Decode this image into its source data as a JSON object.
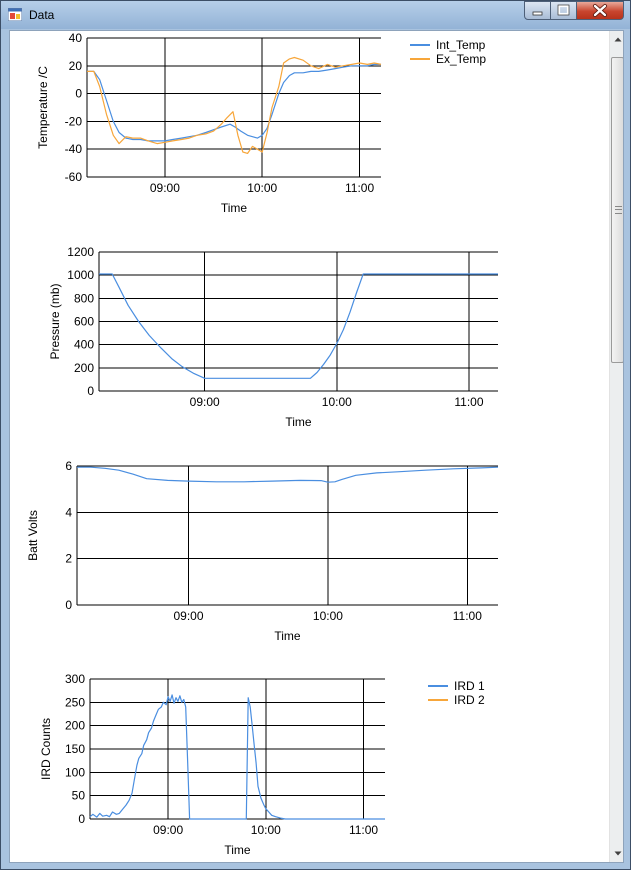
{
  "window": {
    "title": "Data"
  },
  "colors": {
    "series1": "#4a8ee0",
    "series2": "#f7a63a",
    "grid": "#000000"
  },
  "chart_data": [
    {
      "type": "line",
      "title": "",
      "xlabel": "Time",
      "ylabel": "Temperature /C",
      "xlim": [
        8.2,
        11.22
      ],
      "ylim": [
        -60,
        40
      ],
      "xticks": [
        9,
        10,
        11
      ],
      "xtick_labels": [
        "09:00",
        "10:00",
        "11:00"
      ],
      "yticks": [
        -60,
        -40,
        -20,
        0,
        20,
        40
      ],
      "ytick_labels": [
        "-60",
        "-40",
        "-20",
        "0",
        "20",
        "40"
      ],
      "legend": "outside-right",
      "series": [
        {
          "name": "Int_Temp",
          "x": [
            8.2,
            8.27,
            8.33,
            8.4,
            8.47,
            8.53,
            8.6,
            8.67,
            8.75,
            8.83,
            8.92,
            9.0,
            9.08,
            9.17,
            9.25,
            9.33,
            9.42,
            9.5,
            9.58,
            9.67,
            9.72,
            9.78,
            9.85,
            9.9,
            9.95,
            10.0,
            10.05,
            10.1,
            10.17,
            10.22,
            10.28,
            10.33,
            10.42,
            10.5,
            10.58,
            10.67,
            10.75,
            10.83,
            10.92,
            11.0,
            11.08,
            11.15,
            11.22
          ],
          "values": [
            16,
            16,
            10,
            -5,
            -20,
            -28,
            -32,
            -33,
            -33,
            -34,
            -34,
            -34,
            -33,
            -32,
            -31,
            -30,
            -28,
            -26,
            -24,
            -22,
            -24,
            -27,
            -30,
            -31,
            -32,
            -30,
            -25,
            -15,
            0,
            8,
            13,
            15,
            15,
            16,
            16,
            17,
            18,
            19,
            20,
            20,
            20,
            21,
            21
          ]
        },
        {
          "name": "Ex_Temp",
          "x": [
            8.2,
            8.27,
            8.33,
            8.4,
            8.47,
            8.53,
            8.6,
            8.67,
            8.75,
            8.83,
            8.92,
            9.0,
            9.08,
            9.17,
            9.25,
            9.33,
            9.42,
            9.5,
            9.58,
            9.63,
            9.7,
            9.72,
            9.75,
            9.8,
            9.85,
            9.9,
            9.95,
            10.0,
            10.05,
            10.1,
            10.17,
            10.22,
            10.28,
            10.33,
            10.42,
            10.5,
            10.58,
            10.67,
            10.75,
            10.83,
            10.92,
            11.0,
            11.08,
            11.15,
            11.22
          ],
          "values": [
            16,
            16,
            5,
            -15,
            -30,
            -36,
            -31,
            -32,
            -32,
            -34,
            -36,
            -35,
            -34,
            -33,
            -32,
            -30,
            -29,
            -27,
            -22,
            -18,
            -13,
            -20,
            -30,
            -42,
            -43,
            -38,
            -40,
            -42,
            -28,
            -10,
            5,
            22,
            25,
            26,
            24,
            20,
            18,
            21,
            19,
            20,
            21,
            22,
            21,
            22,
            21
          ]
        }
      ]
    },
    {
      "type": "line",
      "title": "",
      "xlabel": "Time",
      "ylabel": "Pressure (mb)",
      "xlim": [
        8.2,
        11.22
      ],
      "ylim": [
        0,
        1200
      ],
      "xticks": [
        9,
        10,
        11
      ],
      "xtick_labels": [
        "09:00",
        "10:00",
        "11:00"
      ],
      "yticks": [
        0,
        200,
        400,
        600,
        800,
        1000,
        1200
      ],
      "ytick_labels": [
        "0",
        "200",
        "400",
        "600",
        "800",
        "1000",
        "1200"
      ],
      "series": [
        {
          "name": "Pressure",
          "x": [
            8.2,
            8.3,
            8.35,
            8.42,
            8.5,
            8.58,
            8.67,
            8.75,
            8.83,
            8.92,
            9.0,
            9.17,
            9.33,
            9.5,
            9.67,
            9.8,
            9.85,
            9.9,
            9.95,
            10.0,
            10.05,
            10.1,
            10.15,
            10.2,
            10.3,
            10.5,
            10.75,
            11.0,
            11.22
          ],
          "values": [
            1010,
            1010,
            900,
            740,
            600,
            480,
            370,
            280,
            210,
            150,
            110,
            110,
            110,
            110,
            110,
            110,
            160,
            230,
            310,
            410,
            530,
            680,
            850,
            1010,
            1010,
            1010,
            1010,
            1010,
            1010
          ]
        }
      ]
    },
    {
      "type": "line",
      "title": "",
      "xlabel": "Time",
      "ylabel": "Batt Volts",
      "xlim": [
        8.2,
        11.22
      ],
      "ylim": [
        0,
        6
      ],
      "xticks": [
        9,
        10,
        11
      ],
      "xtick_labels": [
        "09:00",
        "10:00",
        "11:00"
      ],
      "yticks": [
        0,
        2,
        4,
        6
      ],
      "ytick_labels": [
        "0",
        "2",
        "4",
        "6"
      ],
      "series": [
        {
          "name": "Batt Volts",
          "x": [
            8.2,
            8.3,
            8.4,
            8.5,
            8.6,
            8.7,
            8.85,
            9.0,
            9.2,
            9.4,
            9.6,
            9.8,
            9.95,
            10.0,
            10.05,
            10.1,
            10.2,
            10.35,
            10.5,
            10.7,
            10.9,
            11.1,
            11.22
          ],
          "values": [
            5.95,
            5.95,
            5.9,
            5.82,
            5.65,
            5.45,
            5.38,
            5.35,
            5.32,
            5.32,
            5.35,
            5.38,
            5.37,
            5.3,
            5.32,
            5.42,
            5.6,
            5.7,
            5.75,
            5.82,
            5.88,
            5.92,
            5.95
          ]
        }
      ]
    },
    {
      "type": "line",
      "title": "",
      "xlabel": "Time",
      "ylabel": "IRD Counts",
      "xlim": [
        8.2,
        11.22
      ],
      "ylim": [
        0,
        300
      ],
      "xticks": [
        9,
        10,
        11
      ],
      "xtick_labels": [
        "09:00",
        "10:00",
        "11:00"
      ],
      "yticks": [
        0,
        50,
        100,
        150,
        200,
        250,
        300
      ],
      "ytick_labels": [
        "0",
        "50",
        "100",
        "150",
        "200",
        "250",
        "300"
      ],
      "legend": "outside-right",
      "series": [
        {
          "name": "IRD 1",
          "x": [
            8.2,
            8.23,
            8.27,
            8.3,
            8.33,
            8.37,
            8.4,
            8.43,
            8.47,
            8.5,
            8.53,
            8.57,
            8.6,
            8.63,
            8.65,
            8.68,
            8.7,
            8.73,
            8.75,
            8.78,
            8.8,
            8.83,
            8.85,
            8.88,
            8.9,
            8.93,
            8.95,
            8.98,
            9.0,
            9.02,
            9.04,
            9.06,
            9.08,
            9.1,
            9.12,
            9.14,
            9.16,
            9.18,
            9.2,
            9.22,
            9.24,
            9.3,
            9.4,
            9.5,
            9.6,
            9.8,
            9.82,
            9.84,
            9.86,
            9.88,
            9.9,
            9.92,
            9.95,
            9.98,
            10.0,
            10.03,
            10.06,
            10.1,
            10.15,
            10.2,
            10.25,
            10.3,
            10.35,
            10.5,
            10.8,
            11.22
          ],
          "values": [
            5,
            10,
            4,
            12,
            6,
            8,
            5,
            15,
            10,
            12,
            20,
            30,
            40,
            55,
            80,
            115,
            130,
            140,
            158,
            170,
            185,
            195,
            210,
            225,
            235,
            240,
            250,
            245,
            262,
            252,
            266,
            248,
            260,
            252,
            264,
            250,
            256,
            240,
            120,
            0,
            0,
            0,
            0,
            0,
            0,
            0,
            260,
            240,
            200,
            160,
            120,
            70,
            45,
            30,
            22,
            15,
            8,
            5,
            2,
            0,
            0,
            0,
            0,
            0,
            0,
            0
          ]
        },
        {
          "name": "IRD 2",
          "x": [],
          "values": []
        }
      ]
    }
  ]
}
